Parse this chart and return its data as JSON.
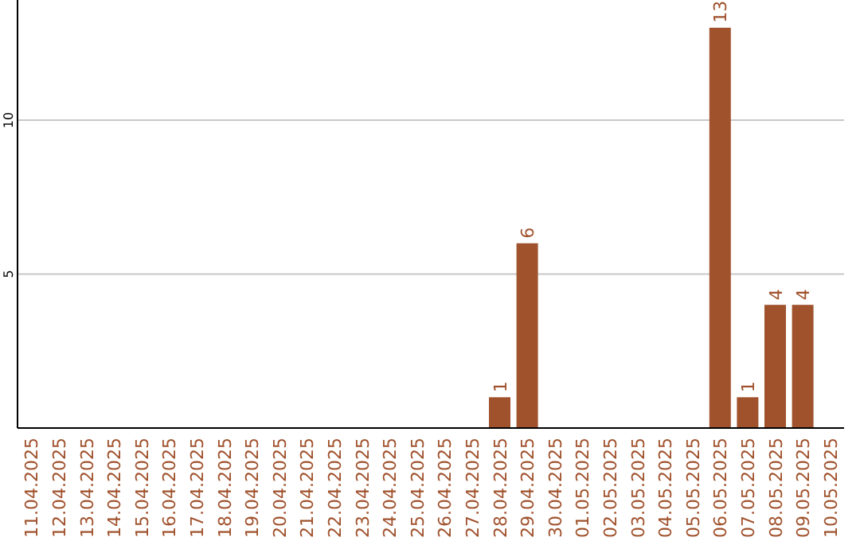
{
  "chart_data": {
    "type": "bar",
    "categories": [
      "11.04.2025",
      "12.04.2025",
      "13.04.2025",
      "14.04.2025",
      "15.04.2025",
      "16.04.2025",
      "17.04.2025",
      "18.04.2025",
      "19.04.2025",
      "20.04.2025",
      "21.04.2025",
      "22.04.2025",
      "23.04.2025",
      "24.04.2025",
      "25.04.2025",
      "26.04.2025",
      "27.04.2025",
      "28.04.2025",
      "29.04.2025",
      "30.04.2025",
      "01.05.2025",
      "02.05.2025",
      "03.05.2025",
      "04.05.2025",
      "05.05.2025",
      "06.05.2025",
      "07.05.2025",
      "08.05.2025",
      "09.05.2025",
      "10.05.2025"
    ],
    "values": [
      0,
      0,
      0,
      0,
      0,
      0,
      0,
      0,
      0,
      0,
      0,
      0,
      0,
      0,
      0,
      0,
      0,
      1,
      6,
      0,
      0,
      0,
      0,
      0,
      0,
      13,
      1,
      4,
      4,
      0
    ],
    "value_labels": [
      null,
      null,
      null,
      null,
      null,
      null,
      null,
      null,
      null,
      null,
      null,
      null,
      null,
      null,
      null,
      null,
      null,
      "1",
      "6",
      null,
      null,
      null,
      null,
      null,
      null,
      "13",
      "1",
      "4",
      "4",
      null
    ],
    "color": "#a0522d",
    "ylim": [
      0,
      13.9
    ],
    "yticks": [
      5,
      10
    ],
    "grid": "y"
  }
}
